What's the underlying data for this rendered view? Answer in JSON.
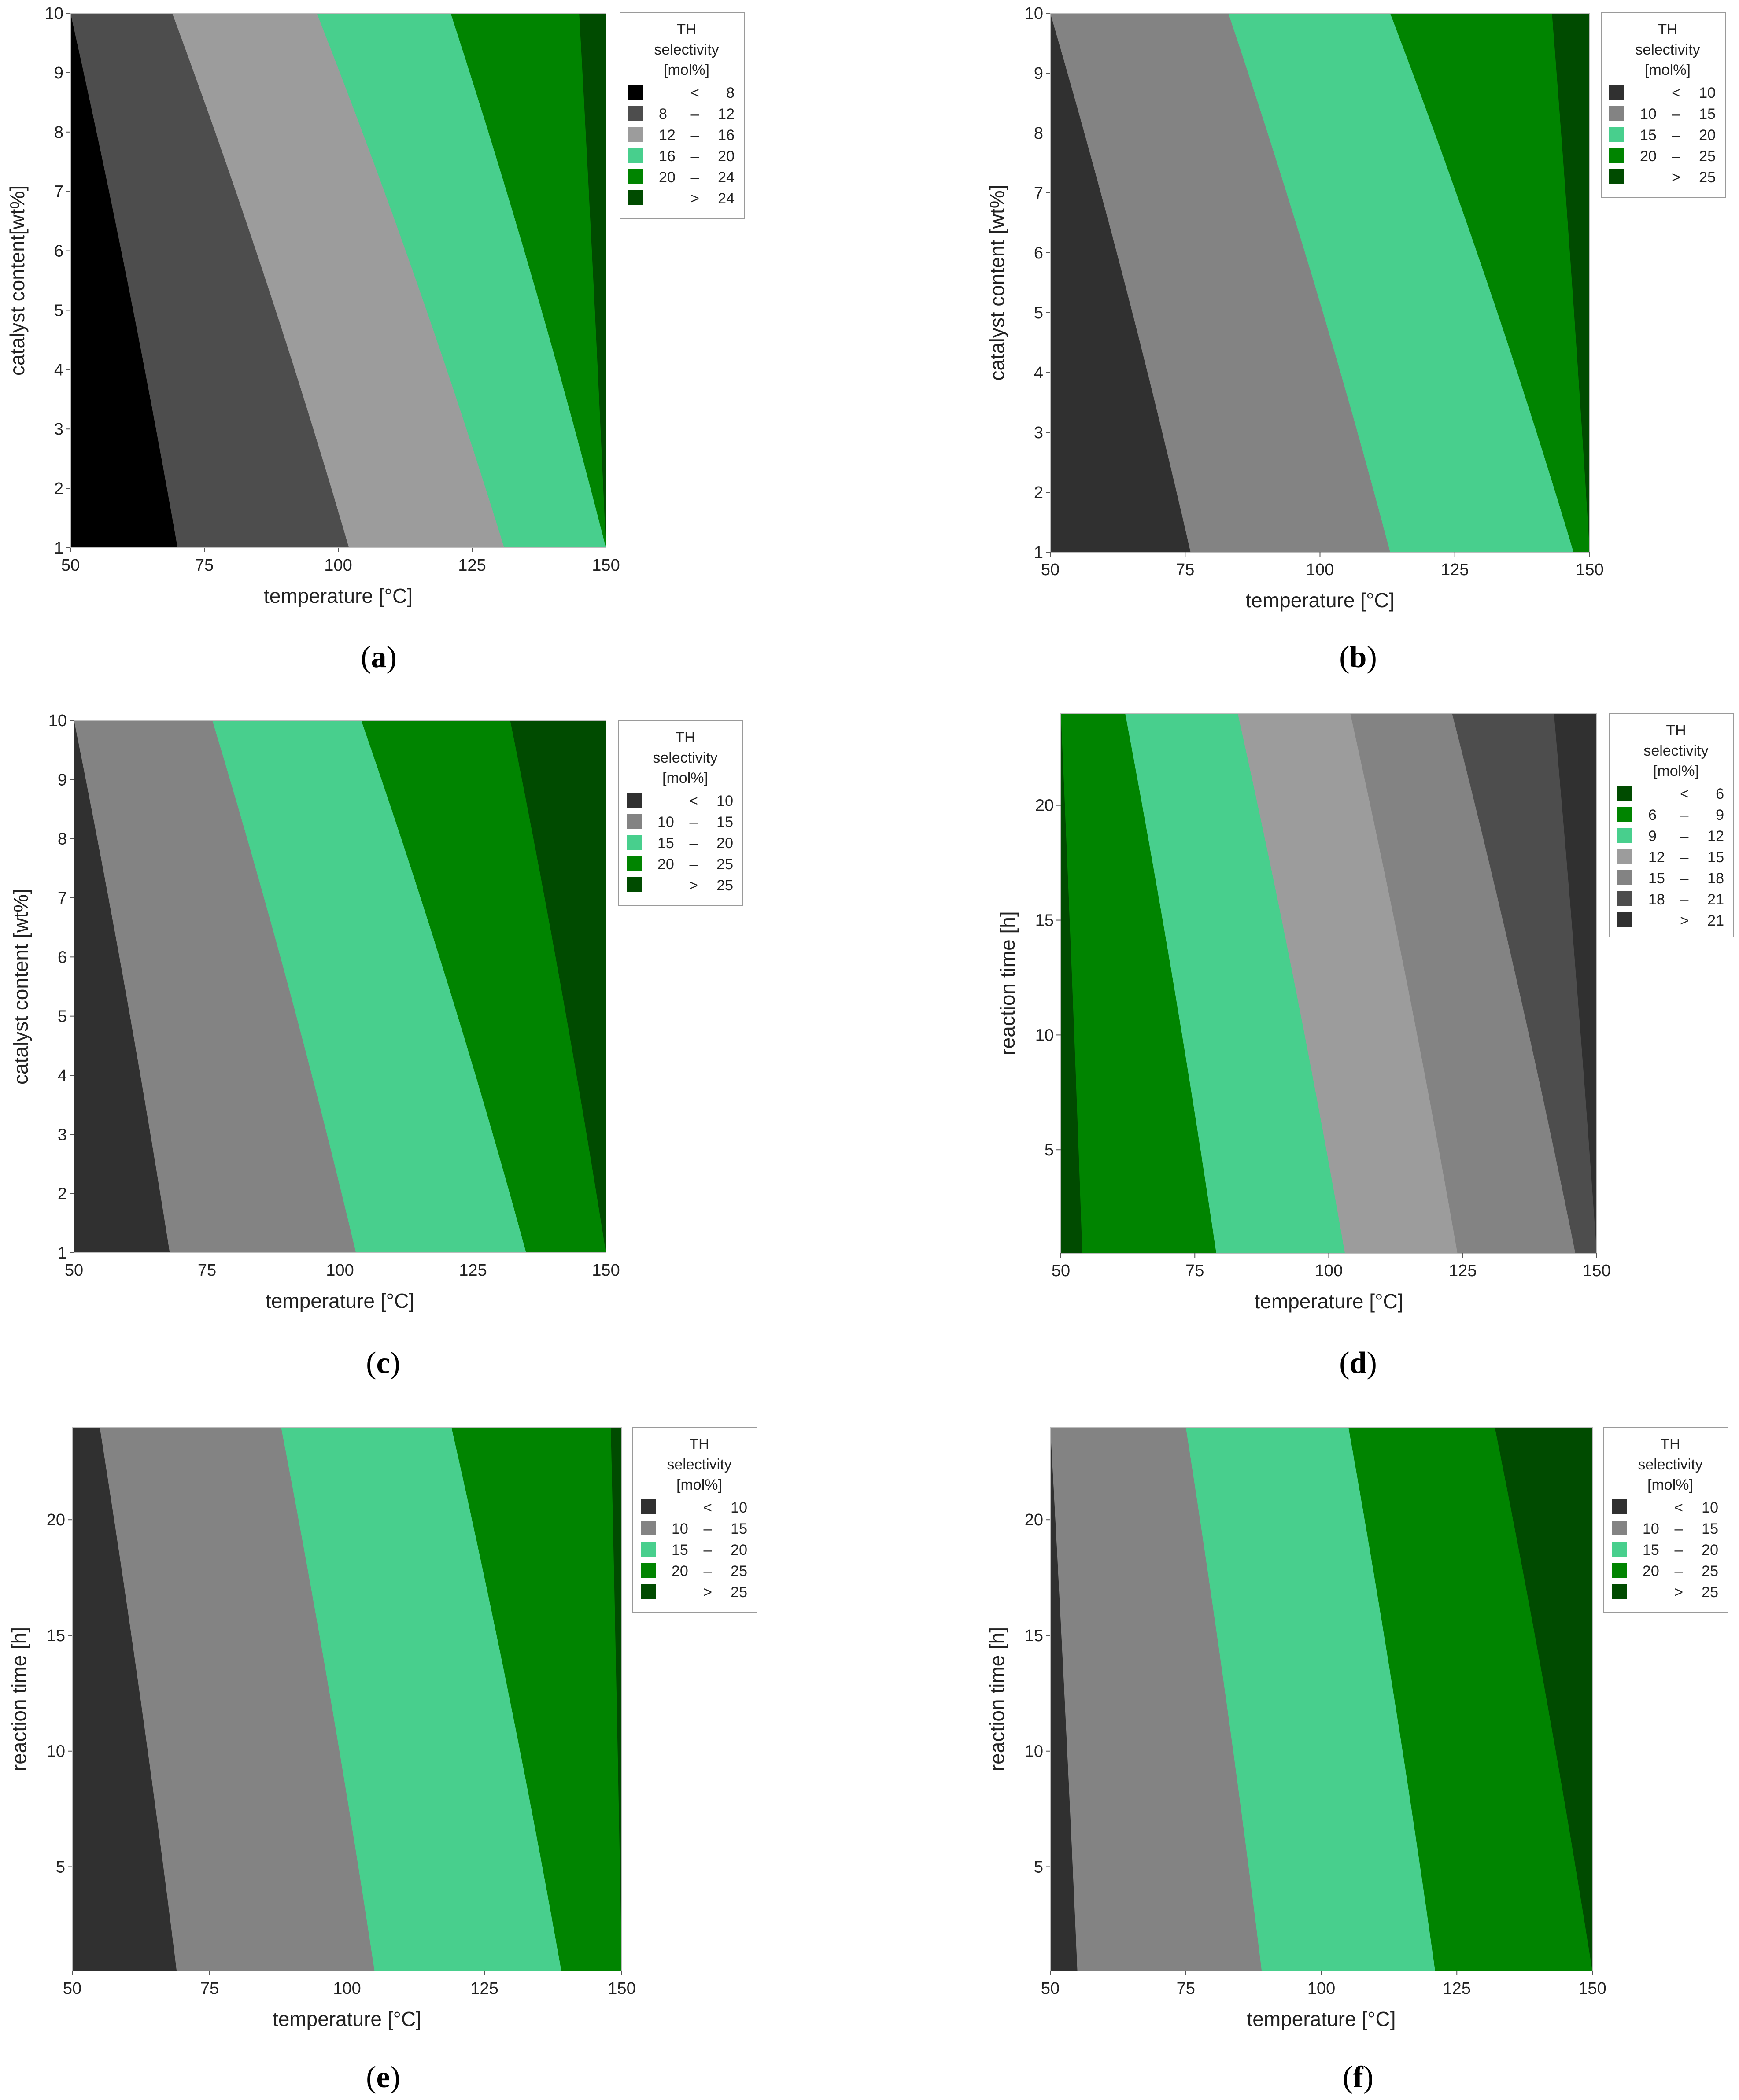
{
  "chart_data": [
    {
      "type": "heatmap",
      "caption": "a",
      "xlabel": "temperature [°C]",
      "ylabel": "catalyst content[wt%]",
      "xlim": [
        50,
        150
      ],
      "ylim": [
        1,
        10
      ],
      "xticks": [
        "50",
        "75",
        "100",
        "125",
        "150"
      ],
      "yticks": [
        "1",
        "2",
        "3",
        "4",
        "5",
        "6",
        "7",
        "8",
        "9",
        "10"
      ],
      "legend_title": [
        "TH",
        "selectivity",
        "[mol%]"
      ],
      "legend_position": "right",
      "legend": [
        {
          "lo": "",
          "sep": "<",
          "hi": "8",
          "color": "#000000"
        },
        {
          "lo": "8",
          "sep": "–",
          "hi": "12",
          "color": "#4d4d4d"
        },
        {
          "lo": "12",
          "sep": "–",
          "hi": "16",
          "color": "#9c9c9c"
        },
        {
          "lo": "16",
          "sep": "–",
          "hi": "20",
          "color": "#48cf8d"
        },
        {
          "lo": "20",
          "sep": "–",
          "hi": "24",
          "color": "#008400"
        },
        {
          "lo": "",
          "sep": ">",
          "hi": "24",
          "color": "#004b00"
        }
      ],
      "boundaries": [
        {
          "at_y_min": 70,
          "at_y_max": 50,
          "y_max_reached": 6.1
        },
        {
          "at_y_min": 102,
          "at_y_max": 69
        },
        {
          "at_y_min": 131,
          "at_y_max": 96
        },
        {
          "at_y_min": 150,
          "at_y_max": 121,
          "y_min_reached": 2.8
        },
        {
          "at_y_min": 150,
          "at_y_max": 145,
          "y_min_reached": 8.8
        }
      ]
    },
    {
      "type": "heatmap",
      "caption": "b",
      "xlabel": "temperature [°C]",
      "ylabel": "catalyst content [wt%]",
      "xlim": [
        50,
        150
      ],
      "ylim": [
        1,
        10
      ],
      "xticks": [
        "50",
        "75",
        "100",
        "125",
        "150"
      ],
      "yticks": [
        "1",
        "2",
        "3",
        "4",
        "5",
        "6",
        "7",
        "8",
        "9",
        "10"
      ],
      "legend_title": [
        "TH",
        "selectivity",
        "[mol%]"
      ],
      "legend_position": "right",
      "legend": [
        {
          "lo": "",
          "sep": "<",
          "hi": "10",
          "color": "#303030"
        },
        {
          "lo": "10",
          "sep": "–",
          "hi": "15",
          "color": "#838383"
        },
        {
          "lo": "15",
          "sep": "–",
          "hi": "20",
          "color": "#48cf8d"
        },
        {
          "lo": "20",
          "sep": "–",
          "hi": "25",
          "color": "#008400"
        },
        {
          "lo": "",
          "sep": ">",
          "hi": "25",
          "color": "#004b00"
        }
      ],
      "boundaries": [
        {
          "at_y_min": 76,
          "at_y_max": 50,
          "y_max_reached": 9.8
        },
        {
          "at_y_min": 113,
          "at_y_max": 83
        },
        {
          "at_y_min": 147,
          "at_y_max": 113
        },
        {
          "at_y_min": 150,
          "at_y_max": 143,
          "y_min_reached": 7.4
        }
      ]
    },
    {
      "type": "heatmap",
      "caption": "c",
      "xlabel": "temperature [°C]",
      "ylabel": "catalyst content [wt%]",
      "xlim": [
        50,
        150
      ],
      "ylim": [
        1,
        10
      ],
      "xticks": [
        "50",
        "75",
        "100",
        "125",
        "150"
      ],
      "yticks": [
        "1",
        "2",
        "3",
        "4",
        "5",
        "6",
        "7",
        "8",
        "9",
        "10"
      ],
      "legend_title": [
        "TH",
        "selectivity",
        "[mol%]"
      ],
      "legend_position": "right",
      "legend": [
        {
          "lo": "",
          "sep": "<",
          "hi": "10",
          "color": "#303030"
        },
        {
          "lo": "10",
          "sep": "–",
          "hi": "15",
          "color": "#838383"
        },
        {
          "lo": "15",
          "sep": "–",
          "hi": "20",
          "color": "#48cf8d"
        },
        {
          "lo": "20",
          "sep": "–",
          "hi": "25",
          "color": "#008400"
        },
        {
          "lo": "",
          "sep": ">",
          "hi": "25",
          "color": "#004b00"
        }
      ],
      "boundaries": [
        {
          "at_y_min": 68,
          "at_y_max": 50,
          "y_max_reached": 7.0
        },
        {
          "at_y_min": 103,
          "at_y_max": 76
        },
        {
          "at_y_min": 135,
          "at_y_max": 104
        },
        {
          "at_y_min": 150,
          "at_y_max": 132,
          "y_min_reached": 4.6
        }
      ]
    },
    {
      "type": "heatmap",
      "caption": "d",
      "xlabel": "temperature [°C]",
      "ylabel": "reaction time [h]",
      "xlim": [
        50,
        150
      ],
      "ylim": [
        0.5,
        24
      ],
      "xticks": [
        "50",
        "75",
        "100",
        "125",
        "150"
      ],
      "yticks": [
        "5",
        "10",
        "15",
        "20"
      ],
      "legend_title": [
        "TH",
        "selectivity",
        "[mol%]"
      ],
      "legend_position": "right",
      "legend": [
        {
          "lo": "",
          "sep": "<",
          "hi": "6",
          "color": "#004b00"
        },
        {
          "lo": "6",
          "sep": "–",
          "hi": "9",
          "color": "#008400"
        },
        {
          "lo": "9",
          "sep": "–",
          "hi": "12",
          "color": "#48cf8d"
        },
        {
          "lo": "12",
          "sep": "–",
          "hi": "15",
          "color": "#9c9c9c"
        },
        {
          "lo": "15",
          "sep": "–",
          "hi": "18",
          "color": "#838383"
        },
        {
          "lo": "18",
          "sep": "–",
          "hi": "21",
          "color": "#4d4d4d"
        },
        {
          "lo": "",
          "sep": ">",
          "hi": "21",
          "color": "#303030"
        }
      ],
      "boundaries": [
        {
          "at_y_min": 54,
          "at_y_max": 50,
          "y_min_reached": 5.0
        },
        {
          "at_y_min": 79,
          "at_y_max": 62
        },
        {
          "at_y_min": 103,
          "at_y_max": 83
        },
        {
          "at_y_min": 124,
          "at_y_max": 104
        },
        {
          "at_y_min": 146,
          "at_y_max": 123
        },
        {
          "at_y_min": 150,
          "at_y_max": 142,
          "y_max_reached": 17.0
        }
      ]
    },
    {
      "type": "heatmap",
      "caption": "e",
      "xlabel": "temperature [°C]",
      "ylabel": "reaction time [h]",
      "xlim": [
        50,
        150
      ],
      "ylim": [
        0.5,
        24
      ],
      "xticks": [
        "50",
        "75",
        "100",
        "125",
        "150"
      ],
      "yticks": [
        "5",
        "10",
        "15",
        "20"
      ],
      "legend_title": [
        "TH",
        "selectivity",
        "[mol%]"
      ],
      "legend_position": "right",
      "legend": [
        {
          "lo": "",
          "sep": "<",
          "hi": "10",
          "color": "#303030"
        },
        {
          "lo": "10",
          "sep": "–",
          "hi": "15",
          "color": "#838383"
        },
        {
          "lo": "15",
          "sep": "–",
          "hi": "20",
          "color": "#48cf8d"
        },
        {
          "lo": "20",
          "sep": "–",
          "hi": "25",
          "color": "#008400"
        },
        {
          "lo": "",
          "sep": ">",
          "hi": "25",
          "color": "#004b00"
        }
      ],
      "boundaries": [
        {
          "at_y_min": 69,
          "at_y_max": 55
        },
        {
          "at_y_min": 105,
          "at_y_max": 88
        },
        {
          "at_y_min": 139,
          "at_y_max": 119
        },
        {
          "at_y_min": 150,
          "at_y_max": 148,
          "y_min_reached": 21.0
        }
      ]
    },
    {
      "type": "heatmap",
      "caption": "f",
      "xlabel": "temperature [°C]",
      "ylabel": "reaction time [h]",
      "xlim": [
        50,
        150
      ],
      "ylim": [
        0.5,
        24
      ],
      "xticks": [
        "50",
        "75",
        "100",
        "125",
        "150"
      ],
      "yticks": [
        "5",
        "10",
        "15",
        "20"
      ],
      "legend_title": [
        "TH",
        "selectivity",
        "[mol%]"
      ],
      "legend_position": "right",
      "legend": [
        {
          "lo": "",
          "sep": "<",
          "hi": "10",
          "color": "#303030"
        },
        {
          "lo": "10",
          "sep": "–",
          "hi": "15",
          "color": "#838383"
        },
        {
          "lo": "15",
          "sep": "–",
          "hi": "20",
          "color": "#48cf8d"
        },
        {
          "lo": "20",
          "sep": "–",
          "hi": "25",
          "color": "#008400"
        },
        {
          "lo": "",
          "sep": ">",
          "hi": "25",
          "color": "#004b00"
        }
      ],
      "boundaries": [
        {
          "at_y_min": 55,
          "at_y_max": 50,
          "y_max_reached": 11.2
        },
        {
          "at_y_min": 89,
          "at_y_max": 75
        },
        {
          "at_y_min": 121,
          "at_y_max": 105
        },
        {
          "at_y_min": 150,
          "at_y_max": 132,
          "y_min_reached": 2.5
        }
      ]
    }
  ]
}
